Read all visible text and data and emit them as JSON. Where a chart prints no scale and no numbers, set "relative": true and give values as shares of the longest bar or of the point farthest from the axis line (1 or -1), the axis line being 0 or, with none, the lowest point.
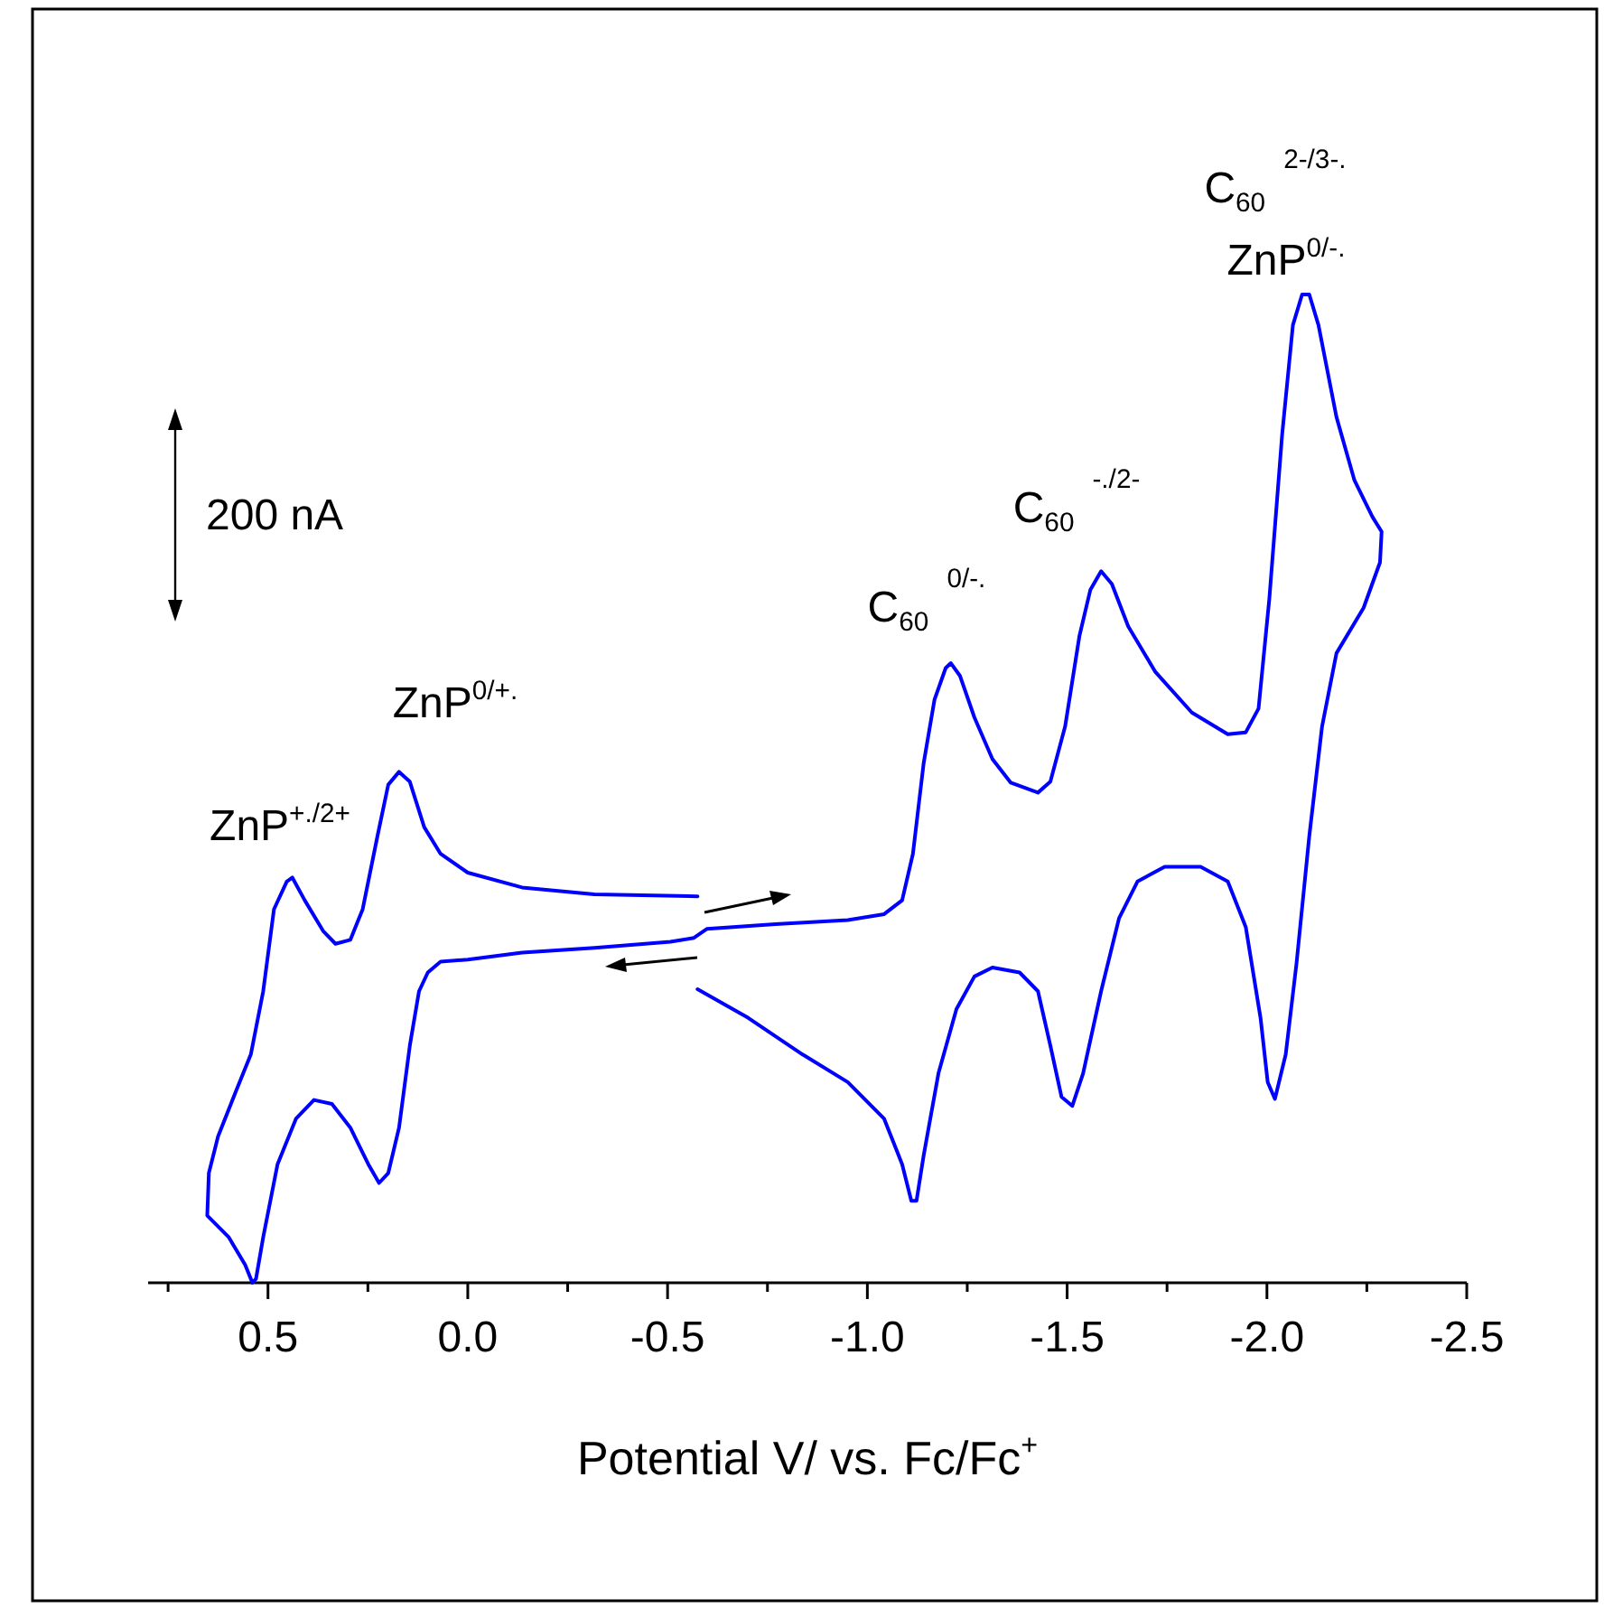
{
  "chart_data": {
    "type": "line",
    "relative": true,
    "xlabel": "Potential V/ vs. Fc/Fc$^{+}$",
    "xlim": [
      0.8,
      -2.5
    ],
    "xticks": [
      {
        "value": 0.75,
        "label": null
      },
      0.5,
      {
        "value": 0.25,
        "label": null
      },
      {
        "value": 0,
        "label": "0.0"
      },
      {
        "value": -0.25,
        "label": null
      },
      -0.5,
      {
        "value": -0.75,
        "label": null
      },
      {
        "value": -1,
        "label": "-1.0"
      },
      {
        "value": -1.25,
        "label": null
      },
      -1.5,
      {
        "value": -1.75,
        "label": null
      },
      {
        "value": -2,
        "label": "-2.0"
      },
      {
        "value": -2.25,
        "label": null
      },
      -2.5
    ],
    "marker": "none",
    "line_style": "solid",
    "series": [
      {
        "color": "#0000ff",
        "x": [
          -0.575,
          -0.702,
          -0.838,
          -0.951,
          -1.042,
          -1.087,
          -1.11,
          -1.123,
          -1.141,
          -1.178,
          -1.223,
          -1.268,
          -1.313,
          -1.381,
          -1.427,
          -1.458,
          -1.486,
          -1.513,
          -1.54,
          -1.585,
          -1.63,
          -1.676,
          -1.744,
          -1.834,
          -1.902,
          -1.947,
          -1.984,
          -2.002,
          -2.02,
          -2.047,
          -2.074,
          -2.106,
          -2.138,
          -2.174,
          -2.242,
          -2.283,
          -2.287,
          -2.264,
          -2.219,
          -2.174,
          -2.129,
          -2.106,
          -2.088,
          -2.065,
          -2.038,
          -2.006,
          -1.979,
          -1.947,
          -1.902,
          -1.812,
          -1.721,
          -1.653,
          -1.612,
          -1.585,
          -1.558,
          -1.531,
          -1.495,
          -1.458,
          -1.427,
          -1.359,
          -1.313,
          -1.268,
          -1.232,
          -1.209,
          -1.196,
          -1.168,
          -1.141,
          -1.114,
          -1.087,
          -1.042,
          -0.951,
          -0.77,
          -0.598,
          -0.566,
          -0.507,
          -0.317,
          -0.136,
          0,
          0.068,
          0.1,
          0.122,
          0.145,
          0.172,
          0.199,
          0.222,
          0.249,
          0.294,
          0.34,
          0.385,
          0.43,
          0.476,
          0.512,
          0.53,
          0.539,
          0.557,
          0.598,
          0.652,
          0.648,
          0.625,
          0.58,
          0.543,
          0.512,
          0.485,
          0.453,
          0.439,
          0.408,
          0.362,
          0.331,
          0.294,
          0.263,
          0.226,
          0.199,
          0.172,
          0.145,
          0.109,
          0.068,
          0,
          -0.136,
          -0.317,
          -0.575
        ],
        "values": [
          0.297,
          0.268,
          0.231,
          0.203,
          0.166,
          0.12,
          0.083,
          0.083,
          0.129,
          0.212,
          0.277,
          0.31,
          0.319,
          0.314,
          0.295,
          0.24,
          0.188,
          0.179,
          0.212,
          0.295,
          0.369,
          0.406,
          0.421,
          0.421,
          0.406,
          0.36,
          0.268,
          0.203,
          0.186,
          0.231,
          0.323,
          0.452,
          0.563,
          0.637,
          0.683,
          0.729,
          0.76,
          0.775,
          0.812,
          0.876,
          0.969,
          1.0,
          1.0,
          0.969,
          0.858,
          0.692,
          0.581,
          0.557,
          0.555,
          0.577,
          0.618,
          0.664,
          0.707,
          0.72,
          0.701,
          0.655,
          0.563,
          0.507,
          0.496,
          0.506,
          0.53,
          0.572,
          0.614,
          0.627,
          0.622,
          0.59,
          0.526,
          0.434,
          0.387,
          0.373,
          0.367,
          0.363,
          0.358,
          0.349,
          0.345,
          0.339,
          0.334,
          0.327,
          0.325,
          0.314,
          0.295,
          0.24,
          0.157,
          0.111,
          0.101,
          0.12,
          0.157,
          0.181,
          0.185,
          0.166,
          0.12,
          0.046,
          0.004,
          0,
          0.018,
          0.046,
          0.068,
          0.111,
          0.148,
          0.194,
          0.231,
          0.295,
          0.378,
          0.406,
          0.41,
          0.387,
          0.356,
          0.343,
          0.347,
          0.378,
          0.452,
          0.504,
          0.517,
          0.507,
          0.461,
          0.434,
          0.415,
          0.4,
          0.393,
          0.391
        ]
      }
    ],
    "annotations": [
      "ZnP$^{+./2+}$",
      "ZnP$^{0/+.}$",
      "C$_{60}$$^{0/-.}$",
      "C$_{60}$$^{-./2-}$",
      "C$_{60}$$^{2-/3-.}$",
      "ZnP$^{0/-.}$",
      "200 nA"
    ]
  }
}
